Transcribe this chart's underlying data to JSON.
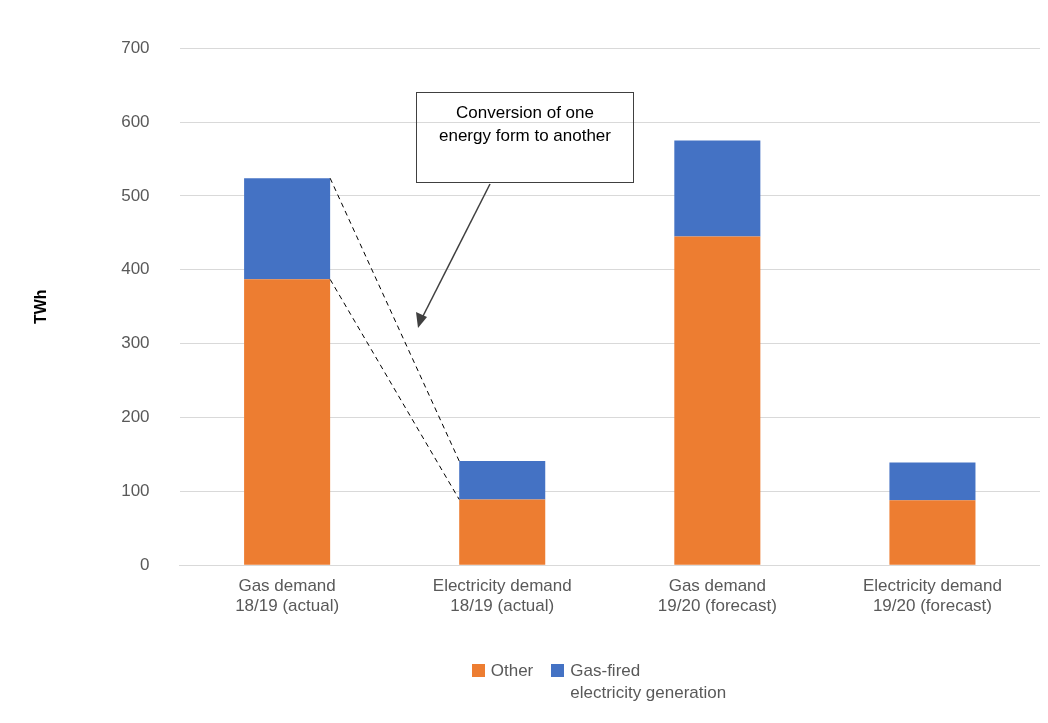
{
  "chart_data": {
    "type": "bar",
    "stacked": true,
    "ylabel": "TWh",
    "categories": [
      "Gas demand 18/19 (actual)",
      "Electricity demand 18/19 (actual)",
      "Gas demand 19/20 (forecast)",
      "Electricity demand 19/20 (forecast)"
    ],
    "series": [
      {
        "name": "Other",
        "color": "#ed7d31",
        "values": [
          387,
          89,
          445,
          88
        ]
      },
      {
        "name": "Gas-fired electricity generation",
        "color": "#4472c4",
        "values": [
          137,
          52,
          130,
          51
        ]
      }
    ],
    "ylim": [
      0,
      700
    ],
    "yticks": [
      0,
      100,
      200,
      300,
      400,
      500,
      600,
      700
    ],
    "grid": "y",
    "legend": "bottom",
    "annotations": [
      "Conversion of one energy form to another"
    ]
  }
}
